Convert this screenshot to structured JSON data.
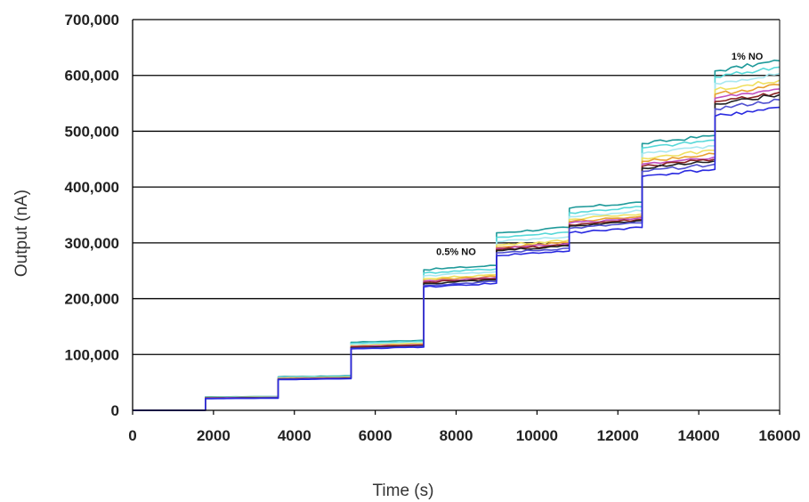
{
  "chart_data": {
    "type": "line",
    "xlabel": "Time (s)",
    "ylabel": "Output (nA)",
    "xlim": [
      0,
      16000
    ],
    "ylim": [
      0,
      700000
    ],
    "x_ticks": [
      0,
      2000,
      4000,
      6000,
      8000,
      10000,
      12000,
      14000,
      16000
    ],
    "x_tick_labels": [
      "0",
      "2000",
      "4000",
      "6000",
      "8000",
      "10000",
      "12000",
      "14000",
      "16000"
    ],
    "y_ticks": [
      0,
      100000,
      200000,
      300000,
      400000,
      500000,
      600000,
      700000
    ],
    "y_tick_labels": [
      "0",
      "100,000",
      "200,000",
      "300,000",
      "400,000",
      "500,000",
      "600,000",
      "700,000"
    ],
    "grid": "horizontal",
    "step_times": [
      0,
      1800,
      3600,
      5400,
      7200,
      9000,
      10800,
      12600,
      14400,
      16000
    ],
    "annotations": [
      {
        "text": "0.5% NO",
        "x": 8000,
        "y": 278000
      },
      {
        "text": "1% NO",
        "x": 15200,
        "y": 628000
      }
    ],
    "series": [
      {
        "color": "#1f9a9a",
        "values": [
          0,
          24000,
          60000,
          122000,
          252000,
          318000,
          362000,
          478000,
          608000
        ]
      },
      {
        "color": "#55d8d8",
        "values": [
          0,
          23500,
          59000,
          120000,
          246000,
          310000,
          354000,
          470000,
          597000
        ]
      },
      {
        "color": "#a8e8f0",
        "values": [
          0,
          23000,
          58000,
          118000,
          241000,
          302000,
          347000,
          460000,
          586000
        ]
      },
      {
        "color": "#f0e060",
        "values": [
          0,
          22800,
          57500,
          116000,
          236000,
          296000,
          342000,
          452000,
          574000
        ]
      },
      {
        "color": "#e8a030",
        "values": [
          0,
          22500,
          57000,
          115000,
          233000,
          292000,
          338000,
          446000,
          566000
        ]
      },
      {
        "color": "#c050c0",
        "values": [
          0,
          22300,
          56500,
          114000,
          231000,
          290000,
          335000,
          441000,
          559000
        ]
      },
      {
        "color": "#8b2323",
        "values": [
          0,
          22000,
          56000,
          113000,
          229000,
          288000,
          332000,
          437000,
          553000
        ]
      },
      {
        "color": "#222222",
        "values": [
          0,
          21800,
          55800,
          112000,
          227000,
          286000,
          330000,
          434000,
          549000
        ]
      },
      {
        "color": "#5050d0",
        "values": [
          0,
          21500,
          55500,
          111000,
          224000,
          282000,
          326000,
          428000,
          540000
        ]
      },
      {
        "color": "#2a2ae0",
        "values": [
          0,
          21000,
          55000,
          110000,
          221000,
          277000,
          318000,
          419000,
          527000
        ]
      }
    ]
  }
}
